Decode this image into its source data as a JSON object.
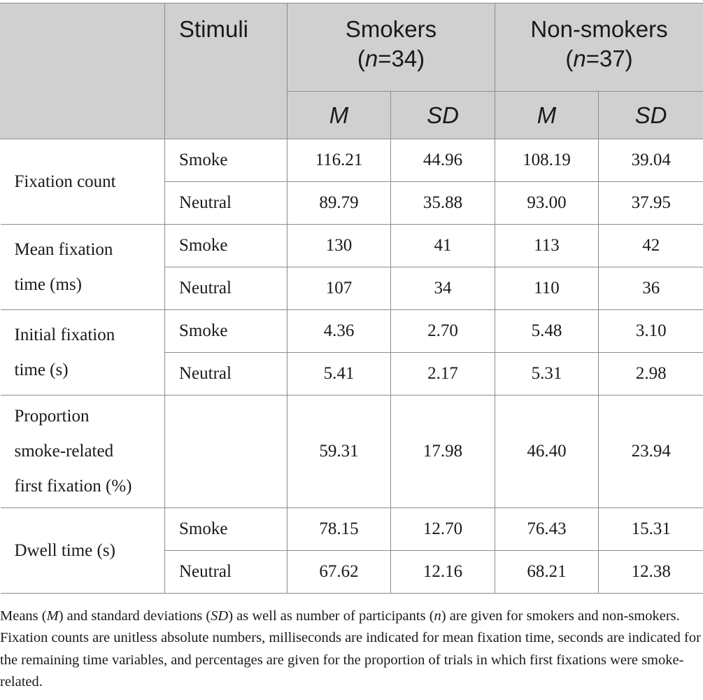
{
  "header": {
    "stimuli": "Stimuli",
    "smokers": {
      "name": "Smokers",
      "n_prefix": "(",
      "n_var": "n",
      "n_suffix": "=34)"
    },
    "nonsmokers": {
      "name": "Non-smokers",
      "n_prefix": "(",
      "n_var": "n",
      "n_suffix": "=37)"
    },
    "m": "M",
    "sd": "SD"
  },
  "rows": {
    "fixation_count": {
      "label": "Fixation count",
      "smoke": {
        "stim": "Smoke",
        "s_m": "116.21",
        "s_sd": "44.96",
        "n_m": "108.19",
        "n_sd": "39.04"
      },
      "neutral": {
        "stim": "Neutral",
        "s_m": "89.79",
        "s_sd": "35.88",
        "n_m": "93.00",
        "n_sd": "37.95"
      }
    },
    "mean_fixation": {
      "label_1": "Mean fixation",
      "label_2": "time (ms)",
      "smoke": {
        "stim": "Smoke",
        "s_m": "130",
        "s_sd": "41",
        "n_m": "113",
        "n_sd": "42"
      },
      "neutral": {
        "stim": "Neutral",
        "s_m": "107",
        "s_sd": "34",
        "n_m": "110",
        "n_sd": "36"
      }
    },
    "initial_fixation": {
      "label_1": "Initial fixation",
      "label_2": "time (s)",
      "smoke": {
        "stim": "Smoke",
        "s_m": "4.36",
        "s_sd": "2.70",
        "n_m": "5.48",
        "n_sd": "3.10"
      },
      "neutral": {
        "stim": "Neutral",
        "s_m": "5.41",
        "s_sd": "2.17",
        "n_m": "5.31",
        "n_sd": "2.98"
      }
    },
    "proportion": {
      "label_1": "Proportion",
      "label_2": "smoke-related",
      "label_3": "first fixation (%)",
      "s_m": "59.31",
      "s_sd": "17.98",
      "n_m": "46.40",
      "n_sd": "23.94"
    },
    "dwell": {
      "label": "Dwell time (s)",
      "smoke": {
        "stim": "Smoke",
        "s_m": "78.15",
        "s_sd": "12.70",
        "n_m": "76.43",
        "n_sd": "15.31"
      },
      "neutral": {
        "stim": "Neutral",
        "s_m": "67.62",
        "s_sd": "12.16",
        "n_m": "68.21",
        "n_sd": "12.38"
      }
    }
  },
  "note": {
    "t1": "Means (",
    "m": "M",
    "t2": ") and standard deviations (",
    "sd": "SD",
    "t3": ") as well as number of participants (",
    "n": "n",
    "t4": ") are given for smokers and non-smokers. Fixation counts are unitless absolute numbers, milliseconds are indicated for mean fixation time, seconds are indicated for the remaining time variables, and percentages are given for the proportion of trials in which first fixations were smoke-related."
  }
}
